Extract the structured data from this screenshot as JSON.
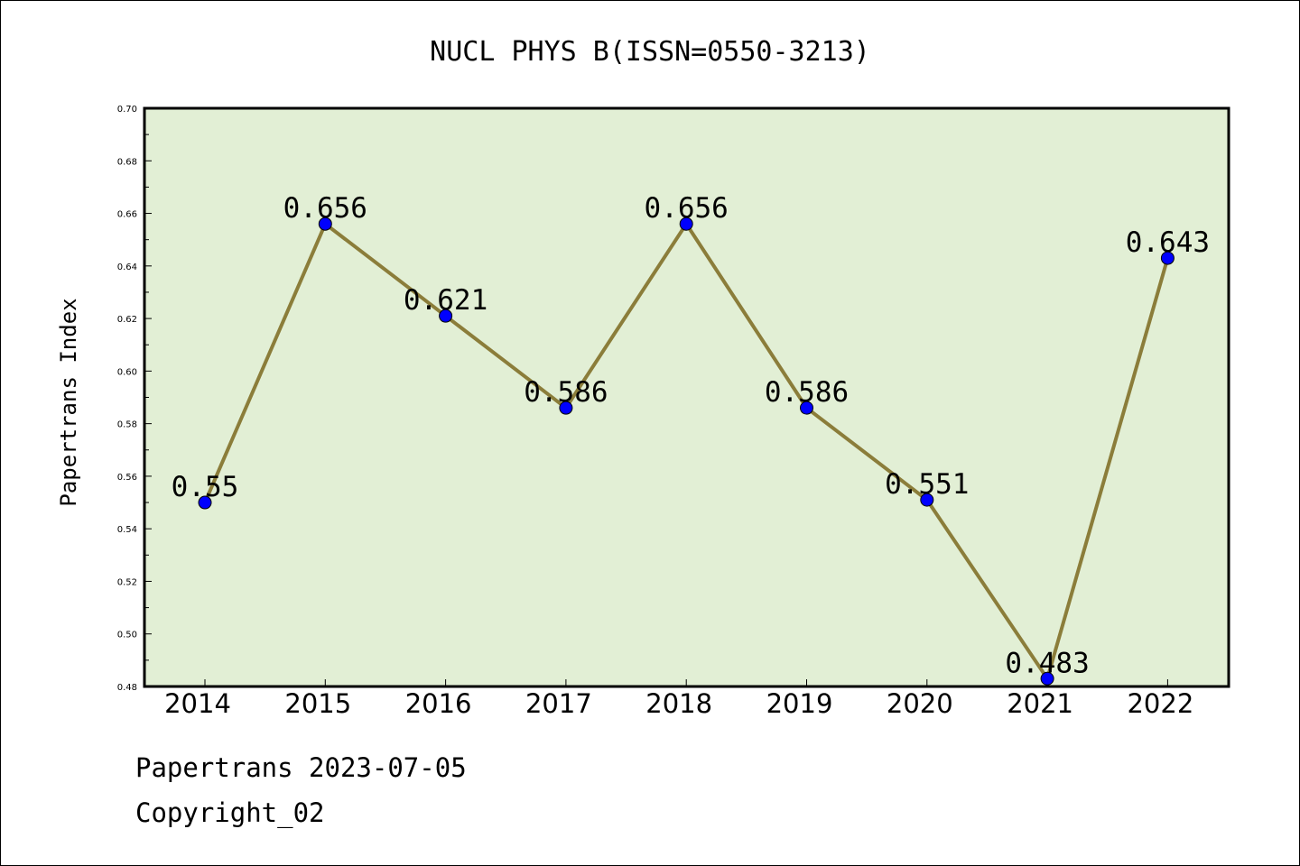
{
  "chart_data": {
    "type": "line",
    "title": "NUCL PHYS B(ISSN=0550-3213)",
    "xlabel": "",
    "ylabel": "Papertrans Index",
    "categories": [
      "2014",
      "2015",
      "2016",
      "2017",
      "2018",
      "2019",
      "2020",
      "2021",
      "2022"
    ],
    "values": [
      0.55,
      0.656,
      0.621,
      0.586,
      0.656,
      0.586,
      0.551,
      0.483,
      0.643
    ],
    "data_labels": [
      "0.55",
      "0.656",
      "0.621",
      "0.586",
      "0.656",
      "0.586",
      "0.551",
      "0.483",
      "0.643"
    ],
    "ylim": [
      0.48,
      0.7
    ],
    "yticks": [
      "0.48",
      "0.50",
      "0.52",
      "0.54",
      "0.56",
      "0.58",
      "0.60",
      "0.62",
      "0.64",
      "0.66",
      "0.68",
      "0.70"
    ],
    "grid": false,
    "legend": "none",
    "colors": {
      "line": "#8b7d3a",
      "marker": "#0000ff",
      "plot_background": "#e2efd5",
      "axes": "#000000"
    }
  },
  "footer": {
    "line1": "Papertrans 2023-07-05",
    "line2": "Copyright_02"
  }
}
